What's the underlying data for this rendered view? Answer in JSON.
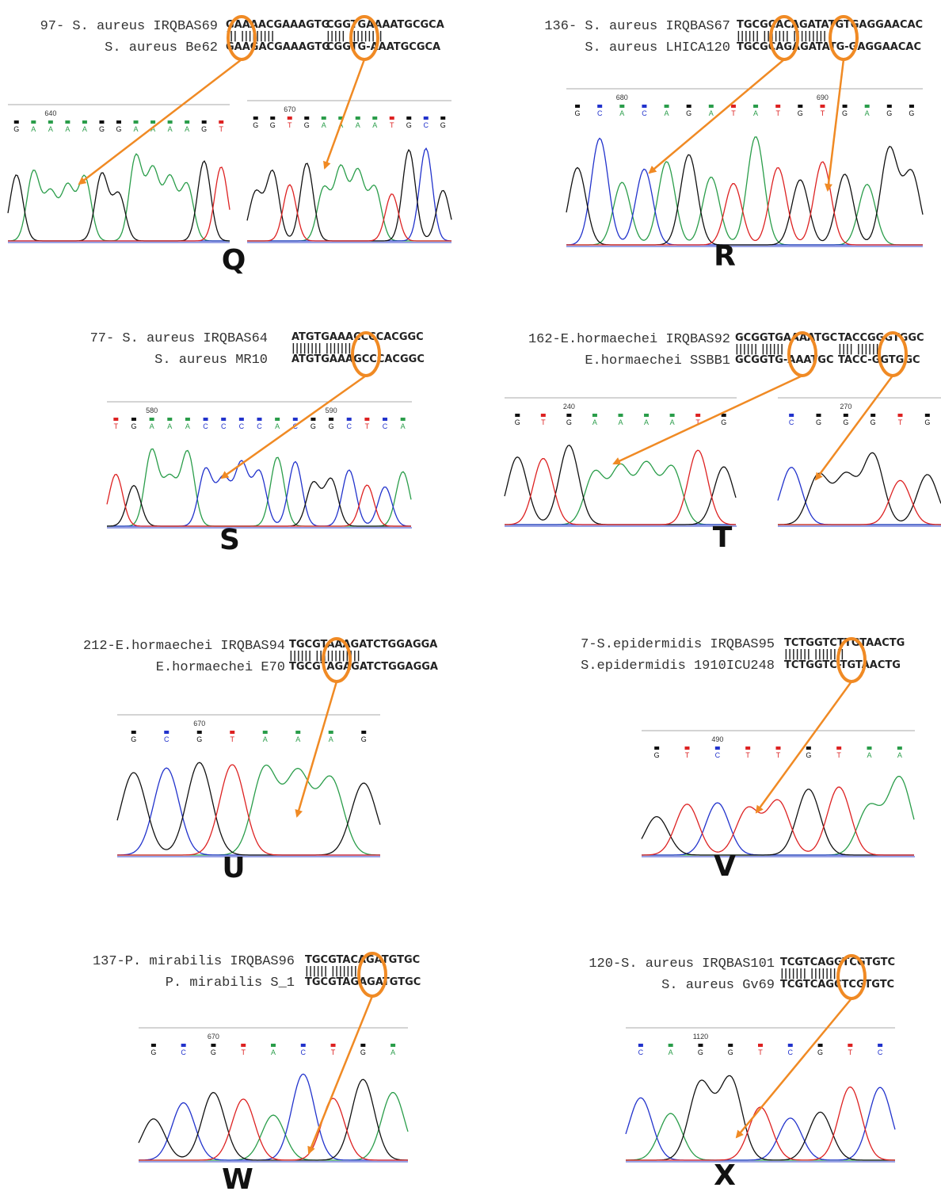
{
  "panels": [
    {
      "letter": "Q",
      "query": "97- S. aureus IRQBAS69",
      "subject": "S. aureus Be62",
      "alignments": [
        {
          "top": "GAAAACGAAAGTG",
          "match": "||| |||||||||",
          "bottom": "GAAGACGAAAGTG"
        },
        {
          "top": "CGGTGAAAATGCGCA",
          "match": "||||| |||||||||",
          "bottom": "CGGTG-AAATGCGCA"
        }
      ],
      "traces": [
        {
          "position": "640",
          "bases": [
            "G",
            "A",
            "A",
            "A",
            "A",
            "G",
            "G",
            "A",
            "A",
            "A",
            "A",
            "G",
            "T"
          ]
        },
        {
          "position": "670",
          "bases": [
            "G",
            "G",
            "T",
            "G",
            "A",
            "A",
            "A",
            "A",
            "T",
            "G",
            "C",
            "G"
          ]
        }
      ]
    },
    {
      "letter": "R",
      "query": "136- S. aureus IRQBAS67",
      "subject": "S. aureus LHICA120",
      "alignments": [
        {
          "top": "TGCGCACAGATATGTGAGGAACAC",
          "match": "|||||| ||||||| |||||||||",
          "bottom": "TGCGCAGAGATATG-GAGGAACAC"
        }
      ],
      "traces": [
        {
          "position": "680",
          "position2": "690",
          "bases": [
            "G",
            "C",
            "A",
            "C",
            "A",
            "G",
            "A",
            "T",
            "A",
            "T",
            "G",
            "T",
            "G",
            "A",
            "G",
            "G"
          ]
        }
      ]
    },
    {
      "letter": "S",
      "query": "77- S. aureus IRQBAS64",
      "subject": "S. aureus MR10",
      "alignments": [
        {
          "top": "ATGTGAAACCCCACGGC",
          "match": "|||||||| ||||||||",
          "bottom": "ATGTGAAAGCCCACGGC"
        }
      ],
      "traces": [
        {
          "position": "580",
          "position2": "590",
          "bases": [
            "T",
            "G",
            "A",
            "A",
            "A",
            "C",
            "C",
            "C",
            "C",
            "A",
            "C",
            "G",
            "G",
            "C",
            "T",
            "C",
            "A"
          ]
        }
      ]
    },
    {
      "letter": "T",
      "query": "162-E.hormaechei IRQBAS92",
      "subject": "E.hormaechei SSBB1",
      "alignments": [
        {
          "top": "GCGGTGAAAATGC",
          "match": "|||||| ||||||",
          "bottom": "GCGGTG-AAATGC"
        },
        {
          "top": "TACCGGGTGGC",
          "match": "|||| ||||||",
          "bottom": "TACC-GGTGGC"
        }
      ],
      "traces": [
        {
          "position": "240",
          "bases": [
            "G",
            "T",
            "G",
            "A",
            "A",
            "A",
            "A",
            "T",
            "G"
          ]
        },
        {
          "position": "270",
          "bases": [
            "C",
            "G",
            "G",
            "G",
            "T",
            "G"
          ]
        }
      ]
    },
    {
      "letter": "U",
      "query": "212-E.hormaechei IRQBAS94",
      "subject": "E.hormaechei E70",
      "alignments": [
        {
          "top": "TGCGTAAAGATCTGGAGGA",
          "match": "|||||| ||||||||||||",
          "bottom": "TGCGTAGAGATCTGGAGGA"
        }
      ],
      "traces": [
        {
          "position": "670",
          "bases": [
            "G",
            "C",
            "G",
            "T",
            "A",
            "A",
            "A",
            "G"
          ]
        }
      ]
    },
    {
      "letter": "V",
      "query": "7-S.epidermidis IRQBAS95",
      "subject": "S.epidermidis 1910ICU248",
      "alignments": [
        {
          "top": "TCTGGTCTTGTAACTG",
          "match": "||||||| ||||||||",
          "bottom": "TCTGGTC-TGTAACTG"
        }
      ],
      "traces": [
        {
          "position": "490",
          "bases": [
            "G",
            "T",
            "C",
            "T",
            "T",
            "G",
            "T",
            "A",
            "A"
          ]
        }
      ]
    },
    {
      "letter": "W",
      "query": "137-P. mirabilis IRQBAS96",
      "subject": "P. mirabilis S_1",
      "alignments": [
        {
          "top": "TGCGTACAGATGTGC",
          "match": "|||||| ||||||||",
          "bottom": "TGCGTAGAGATGTGC"
        }
      ],
      "traces": [
        {
          "position": "670",
          "bases": [
            "G",
            "C",
            "G",
            "T",
            "A",
            "C",
            "T",
            "G",
            "A"
          ]
        }
      ]
    },
    {
      "letter": "X",
      "query": "120-S. aureus IRQBAS101",
      "subject": "S. aureus Gv69",
      "alignments": [
        {
          "top": "TCGTCAGGTCGTGTC",
          "match": "||||||| |||||||",
          "bottom": "TCGTCAGCTCGTGTC"
        }
      ],
      "traces": [
        {
          "position": "1120",
          "bases": [
            "C",
            "A",
            "G",
            "G",
            "T",
            "C",
            "G",
            "T",
            "C"
          ]
        }
      ]
    }
  ]
}
